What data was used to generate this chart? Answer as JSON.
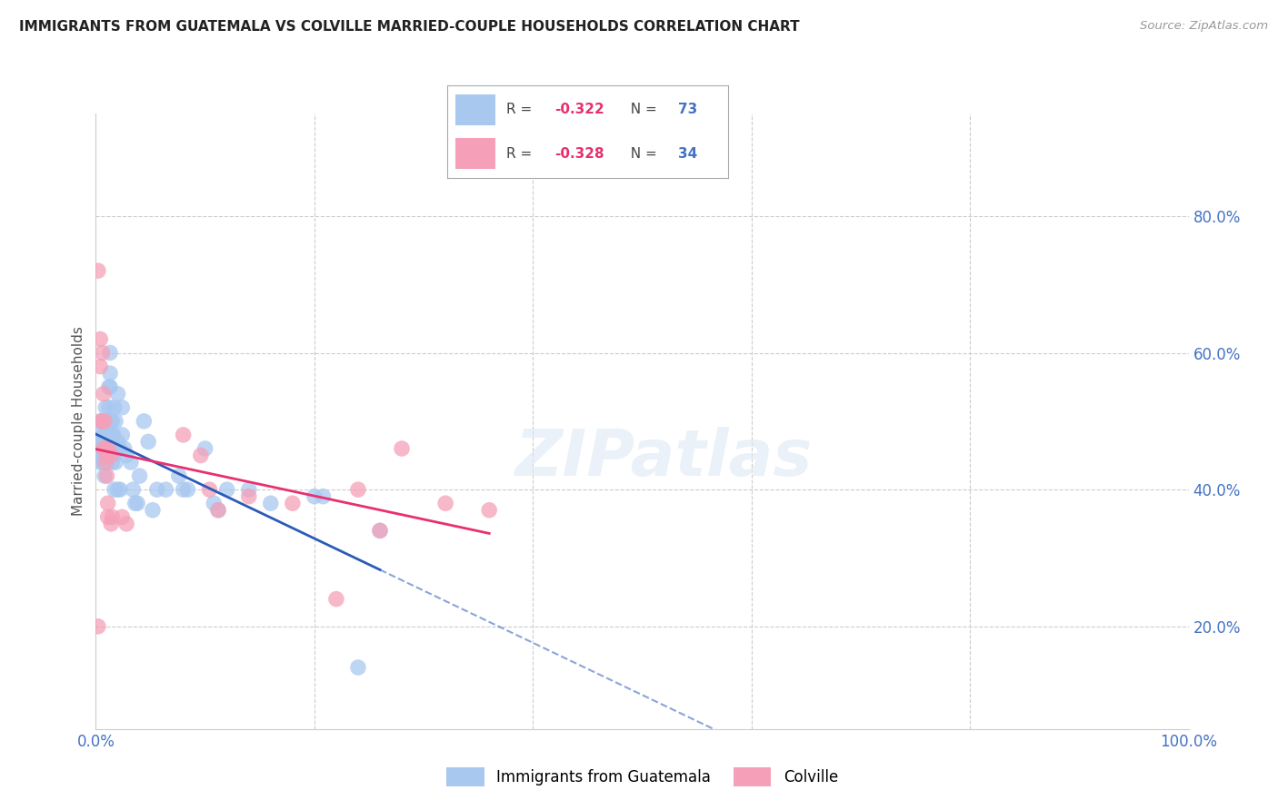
{
  "title": "IMMIGRANTS FROM GUATEMALA VS COLVILLE MARRIED-COUPLE HOUSEHOLDS CORRELATION CHART",
  "source": "Source: ZipAtlas.com",
  "ylabel": "Married-couple Households",
  "xlim": [
    0.0,
    1.0
  ],
  "ylim": [
    0.05,
    0.95
  ],
  "ytick_positions_right": [
    0.2,
    0.4,
    0.6,
    0.8
  ],
  "blue_color": "#A8C8F0",
  "pink_color": "#F5A0B8",
  "blue_line_color": "#2B5BB8",
  "pink_line_color": "#E83070",
  "blue_scatter": [
    [
      0.002,
      0.48
    ],
    [
      0.003,
      0.46
    ],
    [
      0.004,
      0.5
    ],
    [
      0.004,
      0.44
    ],
    [
      0.005,
      0.47
    ],
    [
      0.005,
      0.45
    ],
    [
      0.006,
      0.46
    ],
    [
      0.006,
      0.44
    ],
    [
      0.007,
      0.5
    ],
    [
      0.007,
      0.48
    ],
    [
      0.007,
      0.46
    ],
    [
      0.008,
      0.46
    ],
    [
      0.008,
      0.44
    ],
    [
      0.008,
      0.42
    ],
    [
      0.009,
      0.52
    ],
    [
      0.009,
      0.48
    ],
    [
      0.009,
      0.46
    ],
    [
      0.01,
      0.5
    ],
    [
      0.01,
      0.48
    ],
    [
      0.01,
      0.45
    ],
    [
      0.011,
      0.48
    ],
    [
      0.011,
      0.46
    ],
    [
      0.011,
      0.44
    ],
    [
      0.012,
      0.55
    ],
    [
      0.012,
      0.52
    ],
    [
      0.012,
      0.48
    ],
    [
      0.013,
      0.6
    ],
    [
      0.013,
      0.57
    ],
    [
      0.013,
      0.55
    ],
    [
      0.014,
      0.5
    ],
    [
      0.014,
      0.48
    ],
    [
      0.015,
      0.5
    ],
    [
      0.015,
      0.47
    ],
    [
      0.015,
      0.44
    ],
    [
      0.016,
      0.48
    ],
    [
      0.016,
      0.45
    ],
    [
      0.017,
      0.52
    ],
    [
      0.017,
      0.46
    ],
    [
      0.017,
      0.4
    ],
    [
      0.018,
      0.5
    ],
    [
      0.018,
      0.44
    ],
    [
      0.02,
      0.54
    ],
    [
      0.02,
      0.47
    ],
    [
      0.02,
      0.4
    ],
    [
      0.022,
      0.46
    ],
    [
      0.022,
      0.4
    ],
    [
      0.024,
      0.52
    ],
    [
      0.024,
      0.48
    ],
    [
      0.026,
      0.46
    ],
    [
      0.028,
      0.45
    ],
    [
      0.032,
      0.44
    ],
    [
      0.034,
      0.4
    ],
    [
      0.036,
      0.38
    ],
    [
      0.038,
      0.38
    ],
    [
      0.04,
      0.42
    ],
    [
      0.044,
      0.5
    ],
    [
      0.048,
      0.47
    ],
    [
      0.052,
      0.37
    ],
    [
      0.056,
      0.4
    ],
    [
      0.064,
      0.4
    ],
    [
      0.076,
      0.42
    ],
    [
      0.08,
      0.4
    ],
    [
      0.084,
      0.4
    ],
    [
      0.1,
      0.46
    ],
    [
      0.108,
      0.38
    ],
    [
      0.112,
      0.37
    ],
    [
      0.12,
      0.4
    ],
    [
      0.14,
      0.4
    ],
    [
      0.16,
      0.38
    ],
    [
      0.2,
      0.39
    ],
    [
      0.208,
      0.39
    ],
    [
      0.24,
      0.14
    ],
    [
      0.26,
      0.34
    ]
  ],
  "pink_scatter": [
    [
      0.002,
      0.72
    ],
    [
      0.004,
      0.62
    ],
    [
      0.004,
      0.58
    ],
    [
      0.005,
      0.5
    ],
    [
      0.006,
      0.6
    ],
    [
      0.006,
      0.5
    ],
    [
      0.007,
      0.54
    ],
    [
      0.007,
      0.46
    ],
    [
      0.008,
      0.5
    ],
    [
      0.009,
      0.46
    ],
    [
      0.009,
      0.44
    ],
    [
      0.01,
      0.45
    ],
    [
      0.01,
      0.42
    ],
    [
      0.011,
      0.38
    ],
    [
      0.011,
      0.36
    ],
    [
      0.012,
      0.46
    ],
    [
      0.014,
      0.45
    ],
    [
      0.014,
      0.35
    ],
    [
      0.015,
      0.36
    ],
    [
      0.002,
      0.2
    ],
    [
      0.024,
      0.36
    ],
    [
      0.028,
      0.35
    ],
    [
      0.08,
      0.48
    ],
    [
      0.096,
      0.45
    ],
    [
      0.104,
      0.4
    ],
    [
      0.112,
      0.37
    ],
    [
      0.14,
      0.39
    ],
    [
      0.18,
      0.38
    ],
    [
      0.22,
      0.24
    ],
    [
      0.24,
      0.4
    ],
    [
      0.26,
      0.34
    ],
    [
      0.28,
      0.46
    ],
    [
      0.32,
      0.38
    ],
    [
      0.36,
      0.37
    ]
  ],
  "background_color": "#FFFFFF",
  "grid_color": "#CCCCCC",
  "watermark": "ZIPatlas"
}
